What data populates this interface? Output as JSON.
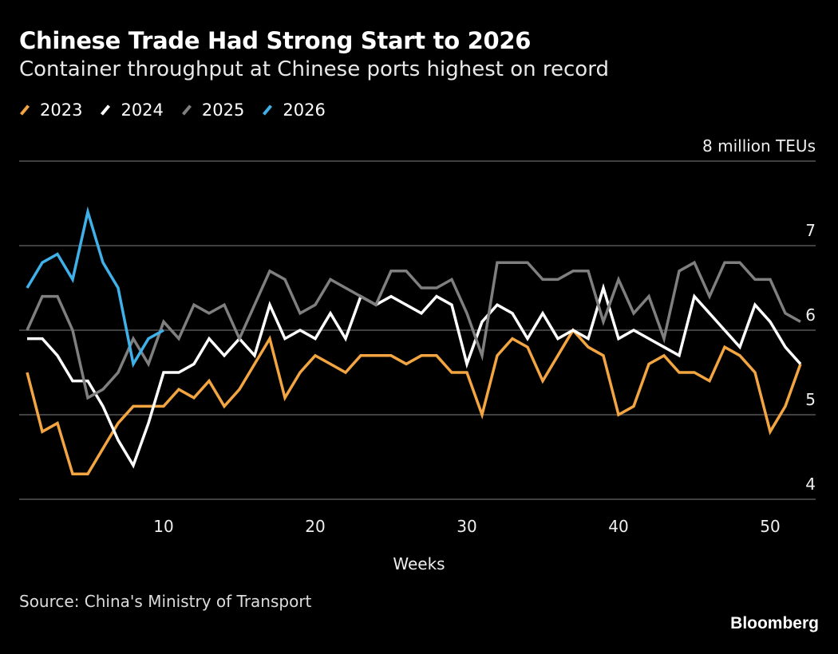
{
  "title": "Chinese Trade Had Strong Start to 2026",
  "subtitle": "Container throughput at Chinese ports highest on record",
  "source": "Source: China's Ministry of Transport",
  "brand": "Bloomberg",
  "chart_data": {
    "type": "line",
    "xlabel": "Weeks",
    "ylabel": "",
    "y_unit_label": "8 million TEUs",
    "xlim": [
      1,
      52
    ],
    "ylim": [
      4,
      8
    ],
    "x_ticks": [
      10,
      20,
      30,
      40,
      50
    ],
    "y_ticks": [
      4,
      5,
      6,
      7,
      8
    ],
    "y_tick_labels": [
      "4",
      "5",
      "6",
      "7",
      "8 million TEUs"
    ],
    "grid": "horizontal",
    "legend_position": "top-left",
    "series": [
      {
        "name": "2023",
        "color": "#f2a541",
        "x_start": 1,
        "values": [
          5.5,
          4.8,
          4.9,
          4.3,
          4.3,
          4.6,
          4.9,
          5.1,
          5.1,
          5.1,
          5.3,
          5.2,
          5.4,
          5.1,
          5.3,
          5.6,
          5.9,
          5.2,
          5.5,
          5.7,
          5.6,
          5.5,
          5.7,
          5.7,
          5.7,
          5.6,
          5.7,
          5.7,
          5.5,
          5.5,
          5.0,
          5.7,
          5.9,
          5.8,
          5.4,
          5.7,
          6.0,
          5.8,
          5.7,
          5.0,
          5.1,
          5.6,
          5.7,
          5.5,
          5.5,
          5.4,
          5.8,
          5.7,
          5.5,
          4.8,
          5.1,
          5.6
        ]
      },
      {
        "name": "2024",
        "color": "#ffffff",
        "x_start": 1,
        "values": [
          5.9,
          5.9,
          5.7,
          5.4,
          5.4,
          5.1,
          4.7,
          4.4,
          4.9,
          5.5,
          5.5,
          5.6,
          5.9,
          5.7,
          5.9,
          5.7,
          6.3,
          5.9,
          6.0,
          5.9,
          6.2,
          5.9,
          6.4,
          6.3,
          6.4,
          6.3,
          6.2,
          6.4,
          6.3,
          5.6,
          6.1,
          6.3,
          6.2,
          5.9,
          6.2,
          5.9,
          6.0,
          5.9,
          6.5,
          5.9,
          6.0,
          5.9,
          5.8,
          5.7,
          6.4,
          6.2,
          6.0,
          5.8,
          6.3,
          6.1,
          5.8,
          5.6
        ]
      },
      {
        "name": "2025",
        "color": "#7f7f7f",
        "x_start": 1,
        "values": [
          6.0,
          6.4,
          6.4,
          6.0,
          5.2,
          5.3,
          5.5,
          5.9,
          5.6,
          6.1,
          5.9,
          6.3,
          6.2,
          6.3,
          5.9,
          6.3,
          6.7,
          6.6,
          6.2,
          6.3,
          6.6,
          6.5,
          6.4,
          6.3,
          6.7,
          6.7,
          6.5,
          6.5,
          6.6,
          6.2,
          5.7,
          6.8,
          6.8,
          6.8,
          6.6,
          6.6,
          6.7,
          6.7,
          6.1,
          6.6,
          6.2,
          6.4,
          5.9,
          6.7,
          6.8,
          6.4,
          6.8,
          6.8,
          6.6,
          6.6,
          6.2,
          6.1
        ]
      },
      {
        "name": "2026",
        "color": "#3fb0e8",
        "x_start": 1,
        "values": [
          6.5,
          6.8,
          6.9,
          6.6,
          7.4,
          6.8,
          6.5,
          5.6,
          5.9,
          6.0
        ]
      }
    ]
  }
}
